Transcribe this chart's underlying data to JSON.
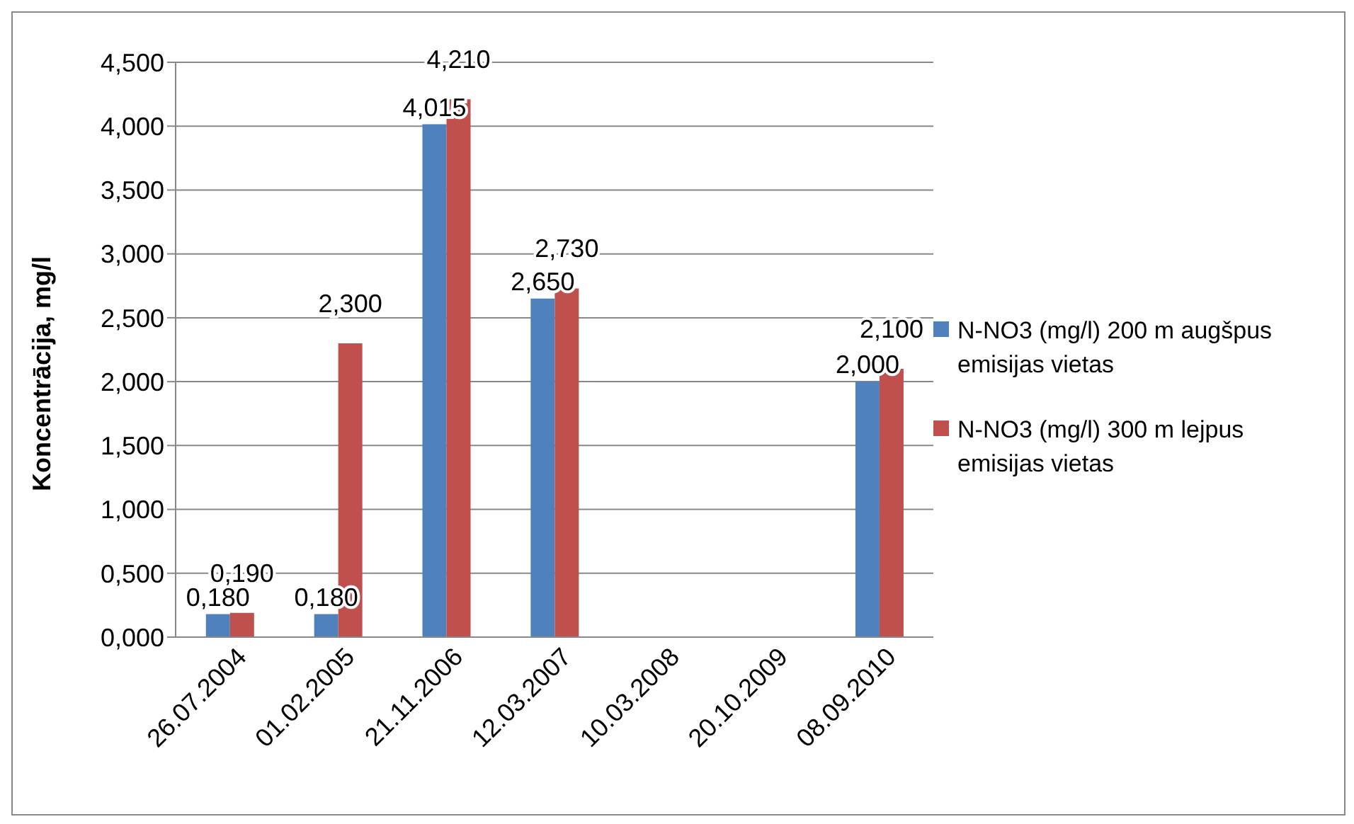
{
  "chart_data": {
    "type": "bar",
    "ylabel": "Koncentrācija, mg/l",
    "categories": [
      "26.07.2004",
      "01.02.2005",
      "21.11.2006",
      "12.03.2007",
      "10.03.2008",
      "20.10.2009",
      "08.09.2010"
    ],
    "series": [
      {
        "name": "N-NO3 (mg/l) 200 m augšpus emisijas vietas",
        "color": "#4f81bd",
        "values": [
          0.18,
          0.18,
          4.015,
          2.65,
          null,
          null,
          2.0
        ],
        "value_labels": [
          "0,180",
          "0,180",
          "4,015",
          "2,650",
          null,
          null,
          "2,000"
        ]
      },
      {
        "name": "N-NO3 (mg/l) 300 m lejpus emisijas vietas",
        "color": "#c0504d",
        "values": [
          0.19,
          2.3,
          4.21,
          2.73,
          null,
          null,
          2.1
        ],
        "value_labels": [
          "0,190",
          "2,300",
          "4,210",
          "2,730",
          null,
          null,
          "2,100"
        ]
      }
    ],
    "ylim": [
      0,
      4.5
    ],
    "yticks": [
      {
        "value": 0,
        "label": "0,000"
      },
      {
        "value": 0.5,
        "label": "0,500"
      },
      {
        "value": 1,
        "label": "1,000"
      },
      {
        "value": 1.5,
        "label": "1,500"
      },
      {
        "value": 2,
        "label": "2,000"
      },
      {
        "value": 2.5,
        "label": "2,500"
      },
      {
        "value": 3,
        "label": "3,000"
      },
      {
        "value": 3.5,
        "label": "3,500"
      },
      {
        "value": 4,
        "label": "4,000"
      },
      {
        "value": 4.5,
        "label": "4,500"
      }
    ],
    "grid": "y",
    "legend": "right"
  }
}
